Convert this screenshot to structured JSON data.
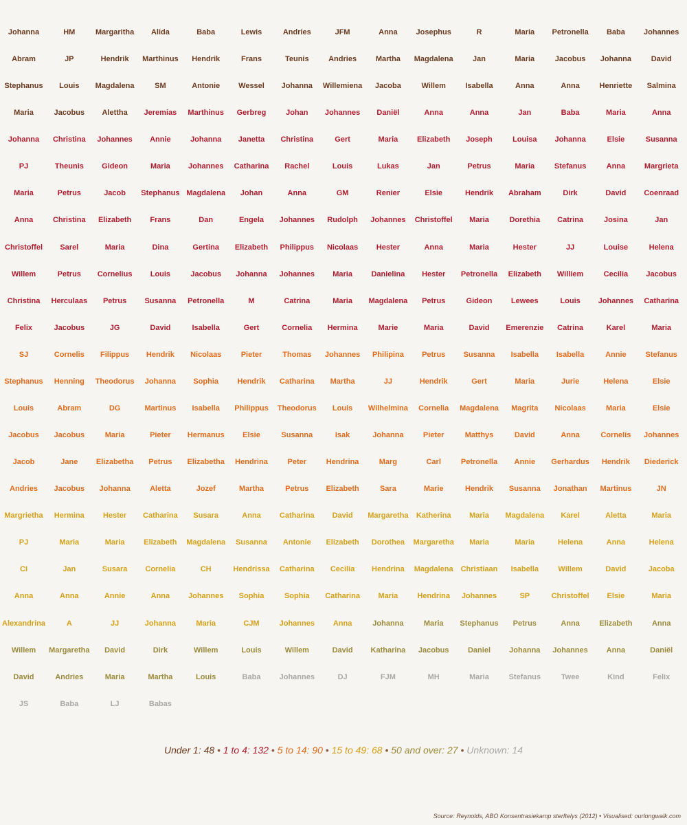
{
  "chart_data": {
    "type": "table",
    "columns": 15,
    "groups": [
      {
        "label": "Under 1",
        "count": 48,
        "color": "#6b3a1f"
      },
      {
        "label": "1 to 4",
        "count": 132,
        "color": "#b01c2e"
      },
      {
        "label": "5 to 14",
        "count": 90,
        "color": "#e06a1b"
      },
      {
        "label": "15 to 49",
        "count": 68,
        "color": "#d4a017"
      },
      {
        "label": "50 and over",
        "count": 27,
        "color": "#9a8a3a"
      },
      {
        "label": "Unknown",
        "count": 14,
        "color": "#a8a8a8"
      }
    ],
    "names": [
      "Johanna",
      "HM",
      "Margaritha",
      "Alida",
      "Baba",
      "Lewis",
      "Andries",
      "JFM",
      "Anna",
      "Josephus",
      "R",
      "Maria",
      "Petronella",
      "Baba",
      "Johannes",
      "Abram",
      "JP",
      "Hendrik",
      "Marthinus",
      "Hendrik",
      "Frans",
      "Teunis",
      "Andries",
      "Martha",
      "Magdalena",
      "Jan",
      "Maria",
      "Jacobus",
      "Johanna",
      "David",
      "Stephanus",
      "Louis",
      "Magdalena",
      "SM",
      "Antonie",
      "Wessel",
      "Johanna",
      "Willemiena",
      "Jacoba",
      "Willem",
      "Isabella",
      "Anna",
      "Anna",
      "Henriette",
      "Salmina",
      "Maria",
      "Jacobus",
      "Alettha",
      "Jeremias",
      "Marthinus",
      "Gerbreg",
      "Johan",
      "Johannes",
      "Daniël",
      "Anna",
      "Anna",
      "Jan",
      "Baba",
      "Maria",
      "Anna",
      "Johanna",
      "Christina",
      "Johannes",
      "Annie",
      "Johanna",
      "Janetta",
      "Christina",
      "Gert",
      "Maria",
      "Elizabeth",
      "Joseph",
      "Louisa",
      "Johanna",
      "Elsie",
      "Susanna",
      "PJ",
      "Theunis",
      "Gideon",
      "Maria",
      "Johannes",
      "Catharina",
      "Rachel",
      "Louis",
      "Lukas",
      "Jan",
      "Petrus",
      "Maria",
      "Stefanus",
      "Anna",
      "Margrieta",
      "Maria",
      "Petrus",
      "Jacob",
      "Stephanus",
      "Magdalena",
      "Johan",
      "Anna",
      "GM",
      "Renier",
      "Elsie",
      "Hendrik",
      "Abraham",
      "Dirk",
      "David",
      "Coenraad",
      "Anna",
      "Christina",
      "Elizabeth",
      "Frans",
      "Dan",
      "Engela",
      "Johannes",
      "Rudolph",
      "Johannes",
      "Christoffel",
      "Maria",
      "Dorethia",
      "Catrina",
      "Josina",
      "Jan",
      "Christoffel",
      "Sarel",
      "Maria",
      "Dina",
      "Gertina",
      "Elizabeth",
      "Philippus",
      "Nicolaas",
      "Hester",
      "Anna",
      "Maria",
      "Hester",
      "JJ",
      "Louise",
      "Helena",
      "Willem",
      "Petrus",
      "Cornelius",
      "Louis",
      "Jacobus",
      "Johanna",
      "Johannes",
      "Maria",
      "Danielina",
      "Hester",
      "Petronella",
      "Elizabeth",
      "Williem",
      "Cecilia",
      "Jacobus",
      "Christina",
      "Herculaas",
      "Petrus",
      "Susanna",
      "Petronella",
      "M",
      "Catrina",
      "Maria",
      "Magdalena",
      "Petrus",
      "Gideon",
      "Lewees",
      "Louis",
      "Johannes",
      "Catharina",
      "Felix",
      "Jacobus",
      "JG",
      "David",
      "Isabella",
      "Gert",
      "Cornelia",
      "Hermina",
      "Marie",
      "Maria",
      "David",
      "Emerenzie",
      "Catrina",
      "Karel",
      "Maria",
      "SJ",
      "Cornelis",
      "Filippus",
      "Hendrik",
      "Nicolaas",
      "Pieter",
      "Thomas",
      "Johannes",
      "Philipina",
      "Petrus",
      "Susanna",
      "Isabella",
      "Isabella",
      "Annie",
      "Stefanus",
      "Stephanus",
      "Henning",
      "Theodorus",
      "Johanna",
      "Sophia",
      "Hendrik",
      "Catharina",
      "Martha",
      "JJ",
      "Hendrik",
      "Gert",
      "Maria",
      "Jurie",
      "Helena",
      "Elsie",
      "Louis",
      "Abram",
      "DG",
      "Martinus",
      "Isabella",
      "Philippus",
      "Theodorus",
      "Louis",
      "Wilhelmina",
      "Cornelia",
      "Magdalena",
      "Magrita",
      "Nicolaas",
      "Maria",
      "Elsie",
      "Jacobus",
      "Jacobus",
      "Maria",
      "Pieter",
      "Hermanus",
      "Elsie",
      "Susanna",
      "Isak",
      "Johanna",
      "Pieter",
      "Matthys",
      "David",
      "Anna",
      "Cornelis",
      "Johannes",
      "Jacob",
      "Jane",
      "Elizabetha",
      "Petrus",
      "Elizabetha",
      "Hendrina",
      "Peter",
      "Hendrina",
      "Marg",
      "Carl",
      "Petronella",
      "Annie",
      "Gerhardus",
      "Hendrik",
      "Diederick",
      "Andries",
      "Jacobus",
      "Johanna",
      "Aletta",
      "Jozef",
      "Martha",
      "Petrus",
      "Elizabeth",
      "Sara",
      "Marie",
      "Hendrik",
      "Susanna",
      "Jonathan",
      "Martinus",
      "JN",
      "Margrietha",
      "Hermina",
      "Hester",
      "Catharina",
      "Susara",
      "Anna",
      "Catharina",
      "David",
      "Margaretha",
      "Katherina",
      "Maria",
      "Magdalena",
      "Karel",
      "Aletta",
      "Maria",
      "PJ",
      "Maria",
      "Maria",
      "Elizabeth",
      "Magdalena",
      "Susanna",
      "Antonie",
      "Elizabeth",
      "Dorothea",
      "Margaretha",
      "Maria",
      "Maria",
      "Helena",
      "Anna",
      "Helena",
      "CI",
      "Jan",
      "Susara",
      "Cornelia",
      "CH",
      "Hendrissa",
      "Catharina",
      "Cecilia",
      "Hendrina",
      "Magdalena",
      "Christiaan",
      "Isabella",
      "Willem",
      "David",
      "Jacoba",
      "Anna",
      "Anna",
      "Annie",
      "Anna",
      "Johannes",
      "Sophia",
      "Sophia",
      "Catharina",
      "Maria",
      "Hendrina",
      "Johannes",
      "SP",
      "Christoffel",
      "Elsie",
      "Maria",
      "Alexandrina",
      "A",
      "JJ",
      "Johanna",
      "Maria",
      "CJM",
      "Johannes",
      "Anna",
      "Johanna",
      "Maria",
      "Stephanus",
      "Petrus",
      "Anna",
      "Elizabeth",
      "Anna",
      "Willem",
      "Margaretha",
      "David",
      "Dirk",
      "Willem",
      "Louis",
      "Willem",
      "David",
      "Katharina",
      "Jacobus",
      "Daniel",
      "Johanna",
      "Johannes",
      "Anna",
      "Daniël",
      "David",
      "Andries",
      "Maria",
      "Martha",
      "Louis",
      "Baba",
      "Johannes",
      "DJ",
      "FJM",
      "MH",
      "Maria",
      "Stefanus",
      "Twee",
      "Kind",
      "Felix",
      "JS",
      "Baba",
      "LJ",
      "Babas"
    ]
  },
  "source": "Source: Reynolds, ABO Konsentrasiekamp sterftelys (2012) • Visualised: ourlongwalk.com"
}
